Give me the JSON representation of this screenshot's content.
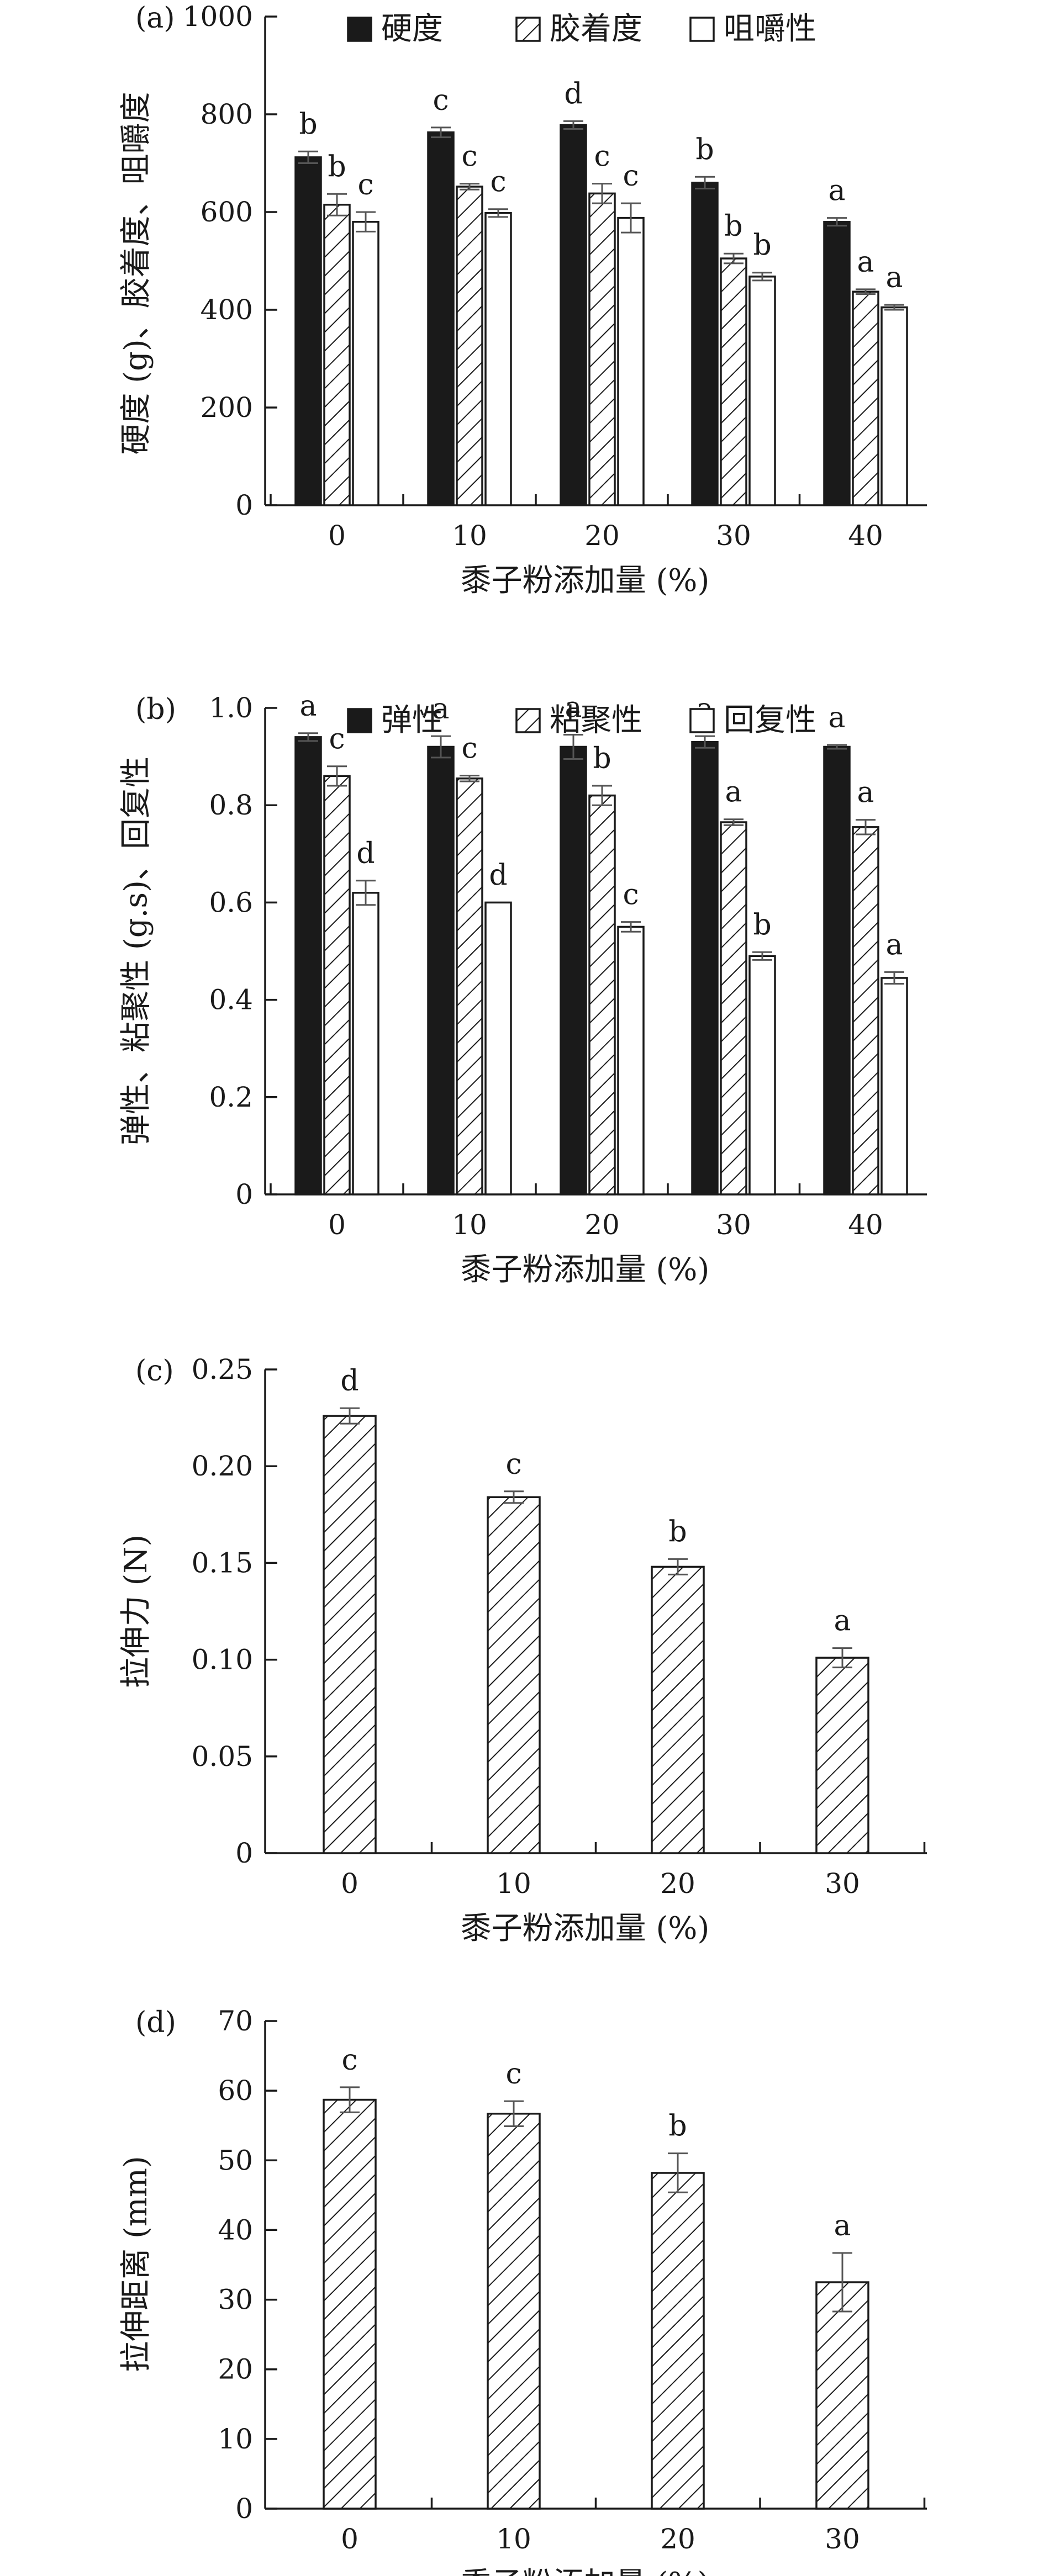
{
  "chart_data": [
    {
      "panel": "(a)",
      "type": "bar",
      "xlabel": "黍子粉添加量 (%)",
      "ylabel": "硬度 (g)、胶着度、咀嚼度",
      "ylim": [
        0,
        1000
      ],
      "yticks": [
        "0",
        "200",
        "400",
        "600",
        "800",
        "1000"
      ],
      "categories": [
        "0",
        "10",
        "20",
        "30",
        "40"
      ],
      "legend_position": "top",
      "series": [
        {
          "name": "硬度",
          "fill": "solid",
          "values": [
            712,
            763,
            778,
            660,
            580
          ],
          "errors": [
            12,
            10,
            8,
            12,
            8
          ],
          "letters": [
            "b",
            "c",
            "d",
            "b",
            "a"
          ]
        },
        {
          "name": "胶着度",
          "fill": "hatch",
          "values": [
            615,
            652,
            638,
            505,
            437
          ],
          "errors": [
            22,
            6,
            20,
            10,
            5
          ],
          "letters": [
            "b",
            "c",
            "c",
            "b",
            "a"
          ]
        },
        {
          "name": "咀嚼性",
          "fill": "white",
          "values": [
            580,
            598,
            588,
            468,
            405
          ],
          "errors": [
            20,
            8,
            30,
            8,
            5
          ],
          "letters": [
            "c",
            "c",
            "c",
            "b",
            "a"
          ]
        }
      ]
    },
    {
      "panel": "(b)",
      "type": "bar",
      "xlabel": "黍子粉添加量 (%)",
      "ylabel": "弹性、粘聚性 (g.s)、回复性",
      "ylim": [
        0,
        1.0
      ],
      "yticks": [
        "0",
        "0.2",
        "0.4",
        "0.6",
        "0.8",
        "1.0"
      ],
      "categories": [
        "0",
        "10",
        "20",
        "30",
        "40"
      ],
      "legend_position": "top",
      "series": [
        {
          "name": "弹性",
          "fill": "solid",
          "values": [
            0.94,
            0.92,
            0.92,
            0.93,
            0.92
          ],
          "errors": [
            0.008,
            0.022,
            0.025,
            0.012,
            0.004
          ],
          "letters": [
            "a",
            "a",
            "a",
            "a",
            "a"
          ]
        },
        {
          "name": "粘聚性",
          "fill": "hatch",
          "values": [
            0.86,
            0.855,
            0.82,
            0.765,
            0.755
          ],
          "errors": [
            0.02,
            0.006,
            0.02,
            0.006,
            0.015
          ],
          "letters": [
            "c",
            "c",
            "b",
            "a",
            "a"
          ]
        },
        {
          "name": "回复性",
          "fill": "white",
          "values": [
            0.62,
            0.6,
            0.55,
            0.49,
            0.445
          ],
          "errors": [
            0.025,
            0.0,
            0.01,
            0.008,
            0.012
          ],
          "letters": [
            "d",
            "d",
            "c",
            "b",
            "a"
          ]
        }
      ]
    },
    {
      "panel": "(c)",
      "type": "bar",
      "xlabel": "黍子粉添加量 (%)",
      "ylabel": "拉伸力 (N)",
      "ylim": [
        0,
        0.25
      ],
      "yticks": [
        "0",
        "0.05",
        "0.10",
        "0.15",
        "0.20",
        "0.25"
      ],
      "categories": [
        "0",
        "10",
        "20",
        "30"
      ],
      "series": [
        {
          "fill": "hatch",
          "values": [
            0.226,
            0.184,
            0.148,
            0.101
          ],
          "errors": [
            0.004,
            0.003,
            0.004,
            0.005
          ],
          "letters": [
            "d",
            "c",
            "b",
            "a"
          ]
        }
      ]
    },
    {
      "panel": "(d)",
      "type": "bar",
      "xlabel": "黍子粉添加量 (%)",
      "ylabel": "拉伸距离 (mm)",
      "ylim": [
        0,
        70
      ],
      "yticks": [
        "0",
        "10",
        "20",
        "30",
        "40",
        "50",
        "60",
        "70"
      ],
      "categories": [
        "0",
        "10",
        "20",
        "30"
      ],
      "series": [
        {
          "fill": "hatch",
          "values": [
            58.7,
            56.7,
            48.2,
            32.5
          ],
          "errors": [
            1.8,
            1.8,
            2.8,
            4.2
          ],
          "letters": [
            "c",
            "c",
            "b",
            "a"
          ]
        }
      ]
    }
  ]
}
